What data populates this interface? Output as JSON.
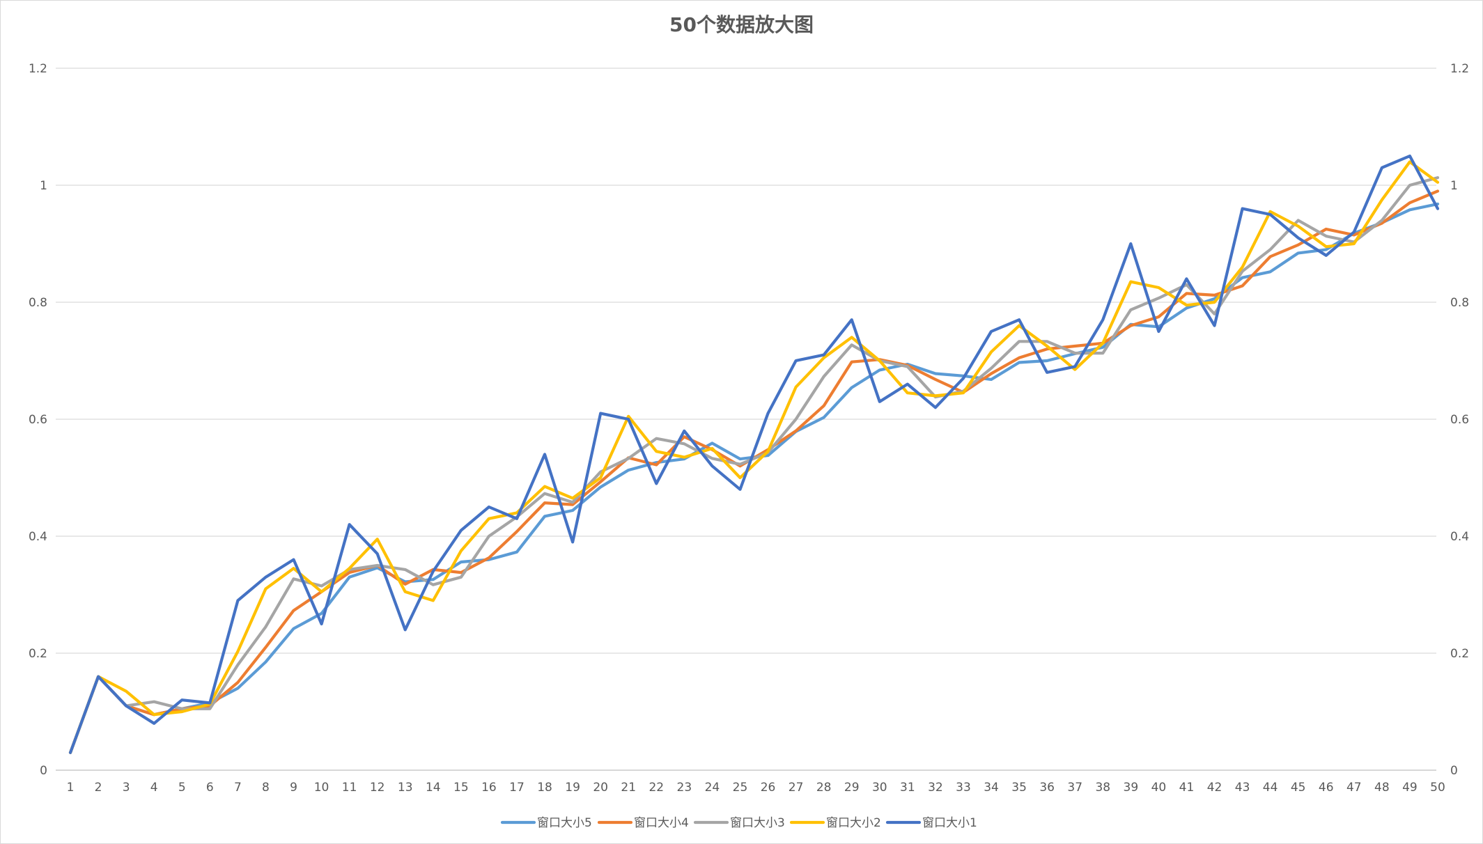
{
  "chart_data": {
    "type": "line",
    "title": "50个数据放大图",
    "x": [
      1,
      2,
      3,
      4,
      5,
      6,
      7,
      8,
      9,
      10,
      11,
      12,
      13,
      14,
      15,
      16,
      17,
      18,
      19,
      20,
      21,
      22,
      23,
      24,
      25,
      26,
      27,
      28,
      29,
      30,
      31,
      32,
      33,
      34,
      35,
      36,
      37,
      38,
      39,
      40,
      41,
      42,
      43,
      44,
      45,
      46,
      47,
      48,
      49,
      50
    ],
    "ylim": [
      0,
      1.2
    ],
    "yticks": [
      "0",
      "0.2",
      "0.4",
      "0.6",
      "0.8",
      "1",
      "1.2"
    ],
    "secondary_yticks": [
      "0",
      "0.2",
      "0.4",
      "0.6",
      "0.8",
      "1",
      "1.2"
    ],
    "grid": true,
    "legend_position": "bottom",
    "series": [
      {
        "name": "窗口大小5",
        "color": "#5B9BD5",
        "values": [
          0.03,
          0.16,
          0.11,
          0.095,
          0.105,
          0.115,
          0.14,
          0.185,
          0.242,
          0.268,
          0.33,
          0.346,
          0.322,
          0.326,
          0.356,
          0.36,
          0.373,
          0.434,
          0.444,
          0.484,
          0.513,
          0.526,
          0.532,
          0.559,
          0.532,
          0.538,
          0.579,
          0.603,
          0.654,
          0.684,
          0.694,
          0.678,
          0.674,
          0.668,
          0.697,
          0.7,
          0.712,
          0.723,
          0.762,
          0.758,
          0.79,
          0.806,
          0.842,
          0.852,
          0.884,
          0.89,
          0.918,
          0.936,
          0.958,
          0.968
        ]
      },
      {
        "name": "窗口大小4",
        "color": "#ED7D31",
        "values": [
          0.03,
          0.16,
          0.11,
          0.095,
          0.105,
          0.11,
          0.15,
          0.21,
          0.273,
          0.305,
          0.338,
          0.35,
          0.318,
          0.343,
          0.338,
          0.363,
          0.408,
          0.457,
          0.454,
          0.493,
          0.534,
          0.522,
          0.57,
          0.548,
          0.52,
          0.548,
          0.58,
          0.623,
          0.698,
          0.702,
          0.692,
          0.668,
          0.646,
          0.678,
          0.705,
          0.72,
          0.725,
          0.73,
          0.76,
          0.775,
          0.815,
          0.812,
          0.828,
          0.878,
          0.898,
          0.925,
          0.915,
          0.935,
          0.97,
          0.99
        ]
      },
      {
        "name": "窗口大小3",
        "color": "#A5A5A5",
        "values": [
          0.03,
          0.16,
          0.11,
          0.117,
          0.105,
          0.105,
          0.18,
          0.245,
          0.327,
          0.315,
          0.343,
          0.35,
          0.343,
          0.317,
          0.33,
          0.4,
          0.433,
          0.473,
          0.458,
          0.51,
          0.533,
          0.567,
          0.558,
          0.533,
          0.523,
          0.543,
          0.6,
          0.673,
          0.727,
          0.7,
          0.69,
          0.638,
          0.648,
          0.687,
          0.733,
          0.733,
          0.713,
          0.713,
          0.787,
          0.807,
          0.83,
          0.78,
          0.853,
          0.89,
          0.94,
          0.913,
          0.903,
          0.94,
          1.0,
          1.013
        ]
      },
      {
        "name": "窗口大小2",
        "color": "#FFC000",
        "values": [
          0.03,
          0.16,
          0.135,
          0.095,
          0.1,
          0.113,
          0.203,
          0.31,
          0.345,
          0.305,
          0.345,
          0.395,
          0.305,
          0.29,
          0.375,
          0.43,
          0.44,
          0.485,
          0.465,
          0.5,
          0.605,
          0.545,
          0.535,
          0.55,
          0.5,
          0.545,
          0.655,
          0.705,
          0.74,
          0.7,
          0.645,
          0.64,
          0.645,
          0.715,
          0.76,
          0.725,
          0.685,
          0.73,
          0.835,
          0.825,
          0.795,
          0.8,
          0.86,
          0.955,
          0.93,
          0.895,
          0.9,
          0.975,
          1.04,
          1.005
        ]
      },
      {
        "name": "窗口大小1",
        "color": "#4472C4",
        "values": [
          0.03,
          0.16,
          0.11,
          0.08,
          0.12,
          0.115,
          0.29,
          0.33,
          0.36,
          0.25,
          0.42,
          0.37,
          0.24,
          0.34,
          0.41,
          0.45,
          0.43,
          0.54,
          0.39,
          0.61,
          0.6,
          0.49,
          0.58,
          0.52,
          0.48,
          0.61,
          0.7,
          0.71,
          0.77,
          0.63,
          0.66,
          0.62,
          0.67,
          0.75,
          0.77,
          0.68,
          0.69,
          0.77,
          0.9,
          0.75,
          0.84,
          0.76,
          0.96,
          0.95,
          0.91,
          0.88,
          0.92,
          1.03,
          1.05,
          0.96
        ]
      }
    ]
  }
}
